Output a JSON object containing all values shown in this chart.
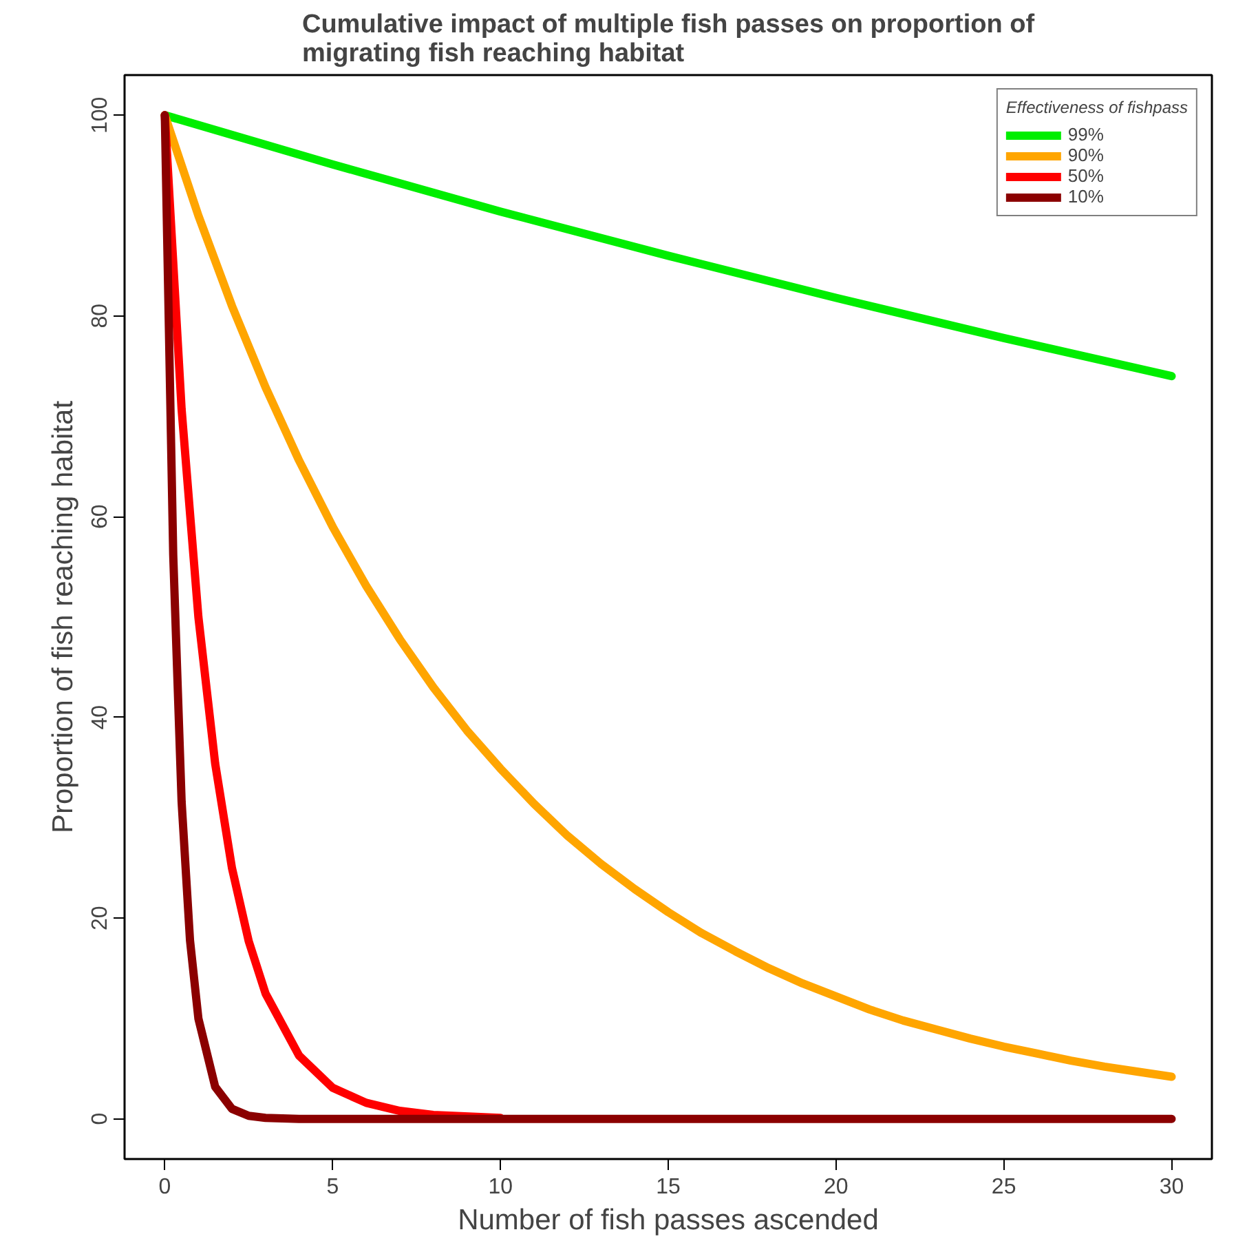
{
  "chart_data": {
    "type": "line",
    "title": "Cumulative impact of multiple fish passes on proportion of\nmigrating fish reaching habitat",
    "xlabel": "Number of fish passes ascended",
    "ylabel": "Proportion of fish reaching habitat",
    "legend_title": "Effectiveness of fishpass",
    "legend": "top right",
    "grid": false,
    "marker": "none",
    "line_style": "solid",
    "xlim": [
      -1.2,
      31.2
    ],
    "ylim": [
      -4,
      104
    ],
    "xticks": [
      0,
      5,
      10,
      15,
      20,
      25,
      30
    ],
    "yticks": [
      0,
      20,
      40,
      60,
      80,
      100
    ],
    "series": [
      {
        "name": "99%",
        "color": "#00ee00",
        "x": [
          0,
          5,
          10,
          15,
          20,
          25,
          30
        ],
        "values": [
          100,
          95.1,
          90.4,
          86.0,
          81.8,
          77.8,
          74.0
        ]
      },
      {
        "name": "90%",
        "color": "#ffa500",
        "x": [
          0,
          1,
          2,
          3,
          4,
          5,
          6,
          7,
          8,
          9,
          10,
          11,
          12,
          13,
          14,
          15,
          16,
          17,
          18,
          19,
          20,
          21,
          22,
          23,
          24,
          25,
          26,
          27,
          28,
          29,
          30
        ],
        "values": [
          100,
          90,
          81,
          72.9,
          65.6,
          59.0,
          53.1,
          47.8,
          43.0,
          38.7,
          34.9,
          31.4,
          28.2,
          25.4,
          22.9,
          20.6,
          18.5,
          16.7,
          15.0,
          13.5,
          12.2,
          10.9,
          9.8,
          8.9,
          8.0,
          7.2,
          6.5,
          5.8,
          5.2,
          4.7,
          4.2
        ]
      },
      {
        "name": "50%",
        "color": "#ff0000",
        "x": [
          0,
          0.5,
          1,
          1.5,
          2,
          2.5,
          3,
          4,
          5,
          6,
          7,
          8,
          10
        ],
        "values": [
          100,
          70.7,
          50,
          35.4,
          25,
          17.7,
          12.5,
          6.3,
          3.1,
          1.6,
          0.8,
          0.4,
          0.1
        ]
      },
      {
        "name": "10%",
        "color": "#8b0000",
        "x": [
          0,
          0.25,
          0.5,
          0.75,
          1,
          1.5,
          2,
          2.5,
          3,
          4,
          10,
          20,
          30
        ],
        "values": [
          100,
          56.2,
          31.6,
          17.8,
          10,
          3.2,
          1,
          0.3,
          0.1,
          0,
          0,
          0,
          0
        ]
      }
    ]
  }
}
